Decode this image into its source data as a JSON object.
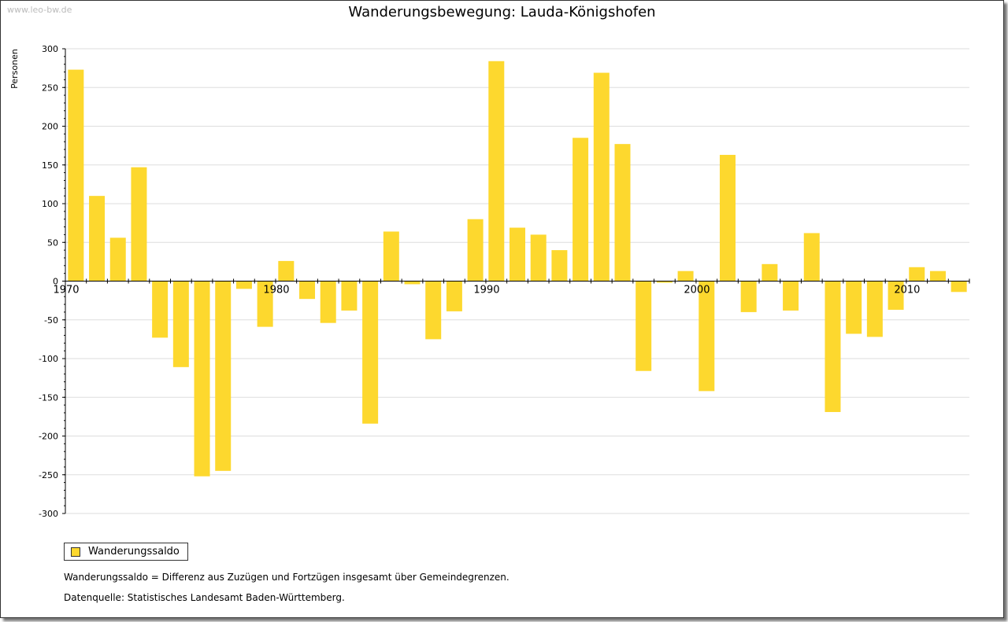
{
  "watermark": "www.leo-bw.de",
  "chart_data": {
    "type": "bar",
    "title": "Wanderungsbewegung: Lauda-Königshofen",
    "ylabel": "Personen",
    "xlabel": "",
    "ylim": [
      -300,
      300
    ],
    "yticks": [
      300,
      250,
      200,
      150,
      100,
      50,
      0,
      -50,
      -100,
      -150,
      -200,
      -250,
      -300
    ],
    "xtick_labels": [
      "1970",
      "1980",
      "1990",
      "2000",
      "2010"
    ],
    "grid": true,
    "legend": {
      "placement": "bottom-left",
      "entries": [
        "Wanderungssaldo"
      ]
    },
    "color": "#fdd82e",
    "categories": [
      1970,
      1971,
      1972,
      1973,
      1974,
      1975,
      1976,
      1977,
      1978,
      1979,
      1980,
      1981,
      1982,
      1983,
      1984,
      1985,
      1986,
      1987,
      1988,
      1989,
      1990,
      1991,
      1992,
      1993,
      1994,
      1995,
      1996,
      1997,
      1998,
      1999,
      2000,
      2001,
      2002,
      2003,
      2004,
      2005,
      2006,
      2007,
      2008,
      2009,
      2010,
      2011,
      2012
    ],
    "series": [
      {
        "name": "Wanderungssaldo",
        "values": [
          273,
          110,
          56,
          147,
          -73,
          -111,
          -252,
          -245,
          -10,
          -59,
          26,
          -23,
          -54,
          -38,
          -184,
          64,
          -4,
          -75,
          -39,
          80,
          284,
          69,
          60,
          40,
          185,
          269,
          177,
          -116,
          -2,
          13,
          -142,
          163,
          -40,
          22,
          -38,
          62,
          -169,
          -68,
          -72,
          -37,
          18,
          13,
          -14
        ]
      }
    ]
  },
  "notes": [
    "Wanderungssaldo = Differenz aus Zuzügen und Fortzügen insgesamt über Gemeindegrenzen.",
    "Datenquelle: Statistisches Landesamt Baden-Württemberg."
  ]
}
